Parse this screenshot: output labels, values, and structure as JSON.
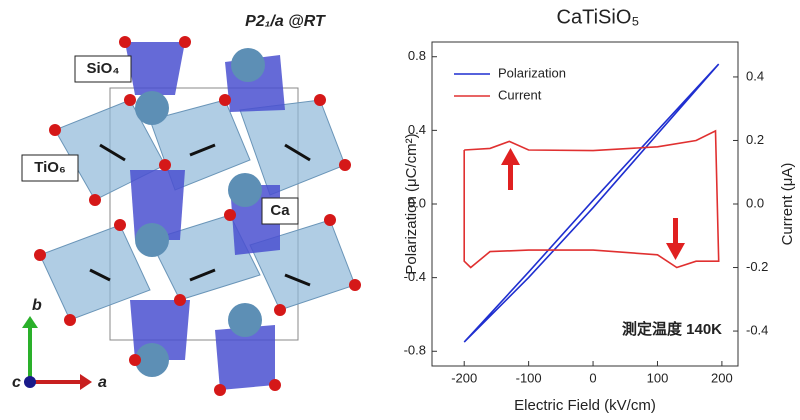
{
  "diagram": {
    "space_group": "P2₁/a @RT",
    "labels": [
      "SiO₄",
      "TiO₆",
      "Ca"
    ],
    "axes": [
      "b",
      "c",
      "a"
    ]
  },
  "chart_data": {
    "type": "line",
    "title": "CaTiSiO₅",
    "x_label": "Electric Field (kV/cm)",
    "y_label": "Polarization (μC/cm²)",
    "y2_label": "Current (μA)",
    "annotations": [
      "測定温度 140K"
    ],
    "xlim": [
      -250,
      225
    ],
    "xticks": [
      -200,
      -100,
      0,
      100,
      200
    ],
    "ylim": [
      -0.88,
      0.88
    ],
    "yticks": [
      -0.8,
      -0.4,
      {
        "value": 0,
        "label": "0.0"
      },
      0.4,
      0.8
    ],
    "y2lim": [
      -0.51,
      0.51
    ],
    "y2ticks": [
      -0.4,
      -0.2,
      {
        "value": 0,
        "label": "0.0"
      },
      0.2,
      0.4
    ],
    "legend": "upper left",
    "grid": false,
    "series": [
      {
        "name": "Polarization",
        "color": "#1f2fd0",
        "x": [
          -200,
          -100,
          0,
          100,
          195,
          100,
          0,
          -100,
          -200
        ],
        "values": [
          -0.75,
          -0.37,
          0.02,
          0.4,
          0.76,
          0.38,
          -0.02,
          -0.4,
          -0.75
        ]
      },
      {
        "name": "Current",
        "color": "#e03030",
        "axis": "y2",
        "x": [
          -200,
          -160,
          -130,
          -100,
          0,
          100,
          160,
          190,
          195,
          160,
          130,
          100,
          0,
          -100,
          -160,
          -190,
          -200,
          -200
        ],
        "values": [
          0.17,
          0.175,
          0.197,
          0.17,
          0.168,
          0.18,
          0.2,
          0.23,
          -0.18,
          -0.18,
          -0.2,
          -0.16,
          -0.145,
          -0.145,
          -0.15,
          -0.2,
          -0.18,
          0.17
        ]
      }
    ]
  }
}
